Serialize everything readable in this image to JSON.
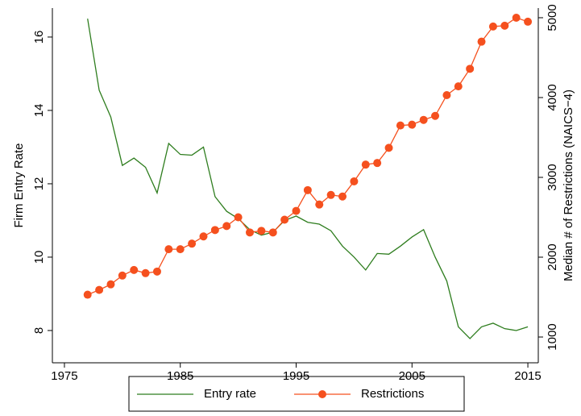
{
  "chart_data": {
    "type": "line",
    "y_label": "Firm Entry Rate",
    "y2_label": "Median # of Restrictions (NAICS−4)",
    "x": [
      1977,
      1978,
      1979,
      1980,
      1981,
      1982,
      1983,
      1984,
      1985,
      1986,
      1987,
      1988,
      1989,
      1990,
      1991,
      1992,
      1993,
      1994,
      1995,
      1996,
      1997,
      1998,
      1999,
      2000,
      2001,
      2002,
      2003,
      2004,
      2005,
      2006,
      2007,
      2008,
      2009,
      2010,
      2011,
      2012,
      2013,
      2014,
      2015
    ],
    "series": [
      {
        "name": "Entry rate",
        "color": "#2e7d1e",
        "values": [
          16.5,
          14.55,
          13.82,
          12.5,
          12.7,
          12.45,
          11.75,
          13.1,
          12.8,
          12.78,
          13.0,
          11.65,
          11.25,
          11.05,
          10.75,
          10.6,
          10.68,
          11.0,
          11.12,
          10.95,
          10.9,
          10.72,
          10.3,
          10.0,
          9.65,
          10.1,
          10.08,
          10.3,
          10.55,
          10.75,
          10.0,
          9.35,
          8.1,
          7.78,
          8.1,
          8.2,
          8.05,
          8.0,
          8.1
        ]
      },
      {
        "name": "Restrictions",
        "color": "#f5501e",
        "axis": "y2",
        "markers": true,
        "values": [
          1530,
          1590,
          1660,
          1770,
          1840,
          1800,
          1820,
          2100,
          2100,
          2170,
          2260,
          2340,
          2390,
          2500,
          2310,
          2330,
          2310,
          2470,
          2580,
          2840,
          2660,
          2780,
          2760,
          2950,
          3160,
          3180,
          3370,
          3650,
          3660,
          3720,
          3770,
          4030,
          4140,
          4360,
          4700,
          4890,
          4900,
          5000,
          4950
        ]
      }
    ],
    "xlim": [
      1973.96,
      2015.9
    ],
    "xticks": [
      1975,
      1985,
      1995,
      2005,
      2015
    ],
    "ylim": [
      7.12,
      16.79
    ],
    "yticks": [
      8,
      10,
      12,
      14,
      16
    ],
    "y2lim": [
      677,
      5121
    ],
    "y2ticks": [
      1000,
      2000,
      3000,
      4000,
      5000
    ],
    "legend": "bottom"
  }
}
